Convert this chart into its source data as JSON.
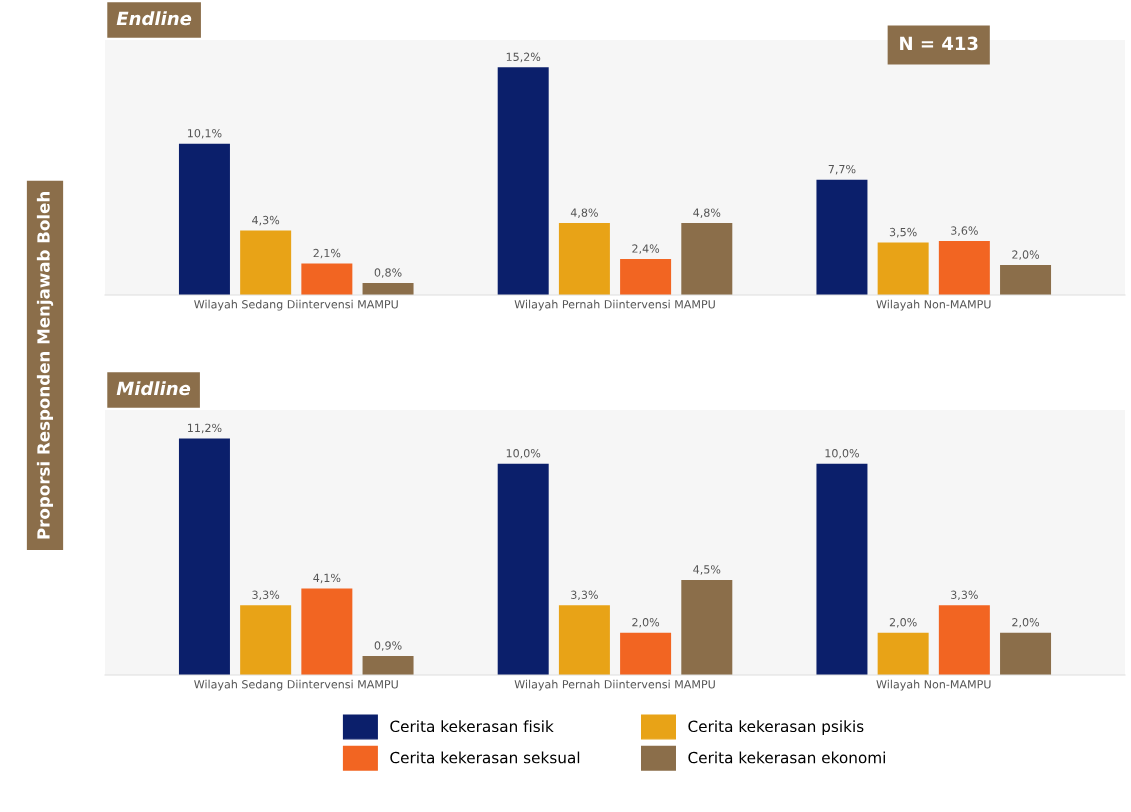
{
  "chart_data": [
    {
      "type": "bar",
      "title": "Endline",
      "ylabel": "Proporsi Responden Menjawab Boleh",
      "annotations": [
        "N = 413"
      ],
      "categories": [
        "Wilayah Sedang Diintervensi MAMPU",
        "Wilayah Pernah Diintervensi MAMPU",
        "Wilayah Non-MAMPU"
      ],
      "tick_labels": "x",
      "legend": false,
      "series": [
        {
          "color": "#0b1f6b",
          "values": [
            10.1,
            15.2,
            7.7
          ],
          "value_labels": [
            "10,1%",
            "15,2%",
            "7,7%"
          ]
        },
        {
          "color": "#e8a317",
          "values": [
            4.3,
            4.8,
            3.5
          ],
          "value_labels": [
            "4,3%",
            "4,8%",
            "3,5%"
          ]
        },
        {
          "color": "#f26522",
          "values": [
            2.1,
            2.4,
            3.6
          ],
          "value_labels": [
            "2,1%",
            "2,4%",
            "3,6%"
          ]
        },
        {
          "color": "#8b6e4a",
          "values": [
            0.8,
            4.8,
            2.0
          ],
          "value_labels": [
            "0,8%",
            "4,8%",
            "2,0%"
          ]
        }
      ]
    },
    {
      "type": "bar",
      "title": "Midline",
      "categories": [
        "Wilayah Sedang Diintervensi MAMPU",
        "Wilayah Pernah Diintervensi MAMPU",
        "Wilayah Non-MAMPU"
      ],
      "tick_labels": "x",
      "legend": "bottom",
      "series": [
        {
          "name": "Cerita kekerasan fisik",
          "color": "#0b1f6b",
          "values": [
            11.2,
            10.0,
            10.0
          ],
          "value_labels": [
            "11,2%",
            "10,0%",
            "10,0%"
          ]
        },
        {
          "name": "Cerita kekerasan psikis",
          "color": "#e8a317",
          "values": [
            3.3,
            3.3,
            2.0
          ],
          "value_labels": [
            "3,3%",
            "3,3%",
            "2,0%"
          ]
        },
        {
          "name": "Cerita kekerasan seksual",
          "color": "#f26522",
          "values": [
            4.1,
            2.0,
            3.3
          ],
          "value_labels": [
            "4,1%",
            "2,0%",
            "3,3%"
          ]
        },
        {
          "name": "Cerita kekerasan ekonomi",
          "color": "#8b6e4a",
          "values": [
            0.9,
            4.5,
            2.0
          ],
          "value_labels": [
            "0,9%",
            "4,5%",
            "2,0%"
          ]
        }
      ]
    }
  ]
}
